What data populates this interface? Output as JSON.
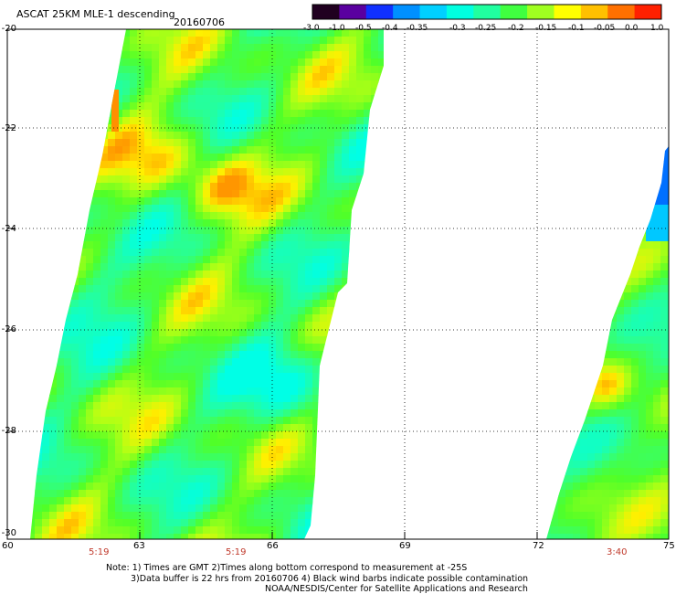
{
  "header": {
    "title": "ASCAT 25KM MLE-1 descending",
    "date": "20160706"
  },
  "colorbar": {
    "labels": [
      "-3.0",
      "-1.0",
      "-0.5",
      "-0.4",
      "-0.35",
      "-0.3",
      "-0.25",
      "-0.2",
      "-0.15",
      "-0.1",
      "-0.05",
      "0.0",
      "1.0"
    ],
    "colors": [
      "#200020",
      "#5a00a0",
      "#1030ff",
      "#0090ff",
      "#00d0ff",
      "#00ffe0",
      "#20ffa0",
      "#40ff40",
      "#a0ff20",
      "#ffff00",
      "#ffc000",
      "#ff7000",
      "#ff2000"
    ]
  },
  "axes": {
    "lat_labels": [
      "-20",
      "-22",
      "-24",
      "-26",
      "-28",
      "-30"
    ],
    "lon_labels": [
      "60",
      "63",
      "66",
      "69",
      "72",
      "75"
    ],
    "time_labels": [
      "5:19",
      "5:19",
      "3:40"
    ]
  },
  "notes": {
    "line1": "Note: 1) Times are GMT 2)Times along bottom correspond to measurement at -25S",
    "line2": "3)Data buffer is 22 hrs from 20160706 4) Black wind barbs indicate possible contamination",
    "line3": "NOAA/NESDIS/Center for Satellite Applications and Research"
  }
}
